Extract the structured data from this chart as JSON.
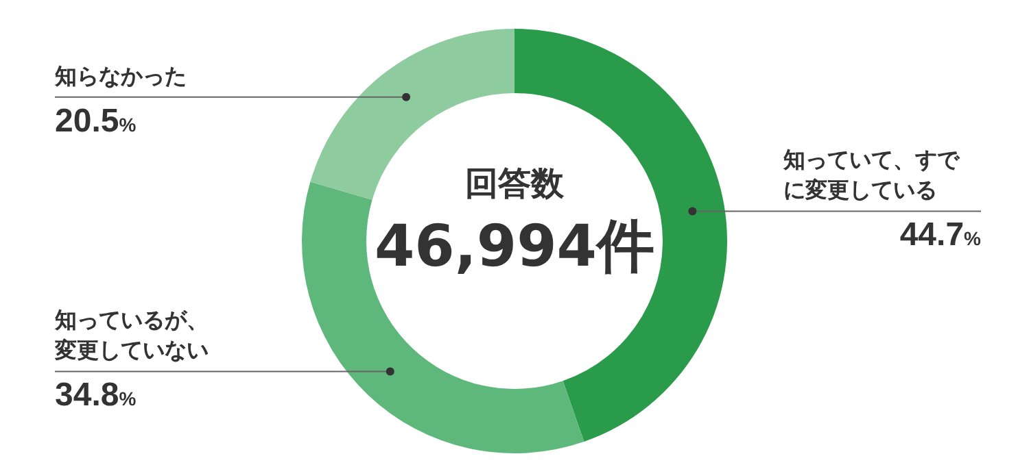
{
  "chart_data": {
    "type": "donut",
    "title": "回答数",
    "subtitle": "46,994件",
    "categories": [
      "知っていて、すでに変更している",
      "知っているが、変更していない",
      "知らなかった"
    ],
    "values": [
      44.7,
      34.8,
      20.5
    ],
    "value_labels": [
      "44.7%",
      "34.8%",
      "20.5%"
    ],
    "colors": [
      "#2a9a4b",
      "#5eb87b",
      "#8ecb9f"
    ]
  }
}
